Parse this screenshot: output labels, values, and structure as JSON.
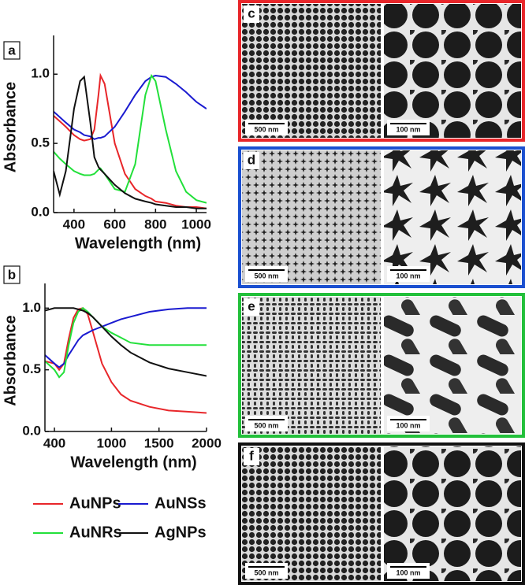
{
  "chart_data": [
    {
      "type": "line",
      "label": "a",
      "x_label": "Wavelength (nm)",
      "y_label": "Absorbance",
      "x": [
        300,
        330,
        360,
        400,
        430,
        450,
        480,
        500,
        520,
        530,
        550,
        600,
        650,
        700,
        750,
        780,
        800,
        850,
        900,
        950,
        1000,
        1050
      ],
      "series": [
        {
          "color": "#e8262a",
          "values": [
            0.7,
            0.66,
            0.62,
            0.56,
            0.53,
            0.52,
            0.53,
            0.6,
            0.85,
            0.99,
            0.93,
            0.5,
            0.28,
            0.17,
            0.12,
            0.1,
            0.08,
            0.07,
            0.05,
            0.04,
            0.04,
            0.03
          ]
        },
        {
          "color": "#1a1ad0",
          "values": [
            0.73,
            0.69,
            0.65,
            0.6,
            0.58,
            0.56,
            0.55,
            0.53,
            0.54,
            0.54,
            0.55,
            0.62,
            0.73,
            0.85,
            0.95,
            0.98,
            0.99,
            0.98,
            0.93,
            0.87,
            0.8,
            0.75
          ]
        },
        {
          "color": "#22e03a",
          "values": [
            0.44,
            0.39,
            0.35,
            0.3,
            0.28,
            0.27,
            0.27,
            0.28,
            0.31,
            0.32,
            0.28,
            0.17,
            0.15,
            0.35,
            0.85,
            0.99,
            0.95,
            0.6,
            0.3,
            0.15,
            0.09,
            0.07
          ]
        },
        {
          "color": "#111111",
          "values": [
            0.3,
            0.13,
            0.3,
            0.75,
            0.95,
            0.98,
            0.65,
            0.4,
            0.33,
            0.31,
            0.28,
            0.2,
            0.14,
            0.1,
            0.08,
            0.07,
            0.06,
            0.05,
            0.04,
            0.04,
            0.03,
            0.03
          ]
        }
      ],
      "xlim": [
        300,
        1050
      ],
      "ylim": [
        0,
        1.28
      ],
      "xticks": [
        400,
        600,
        800,
        1000
      ],
      "yticks": [
        {
          "value": 0,
          "label": "0.0"
        },
        {
          "value": 0.5,
          "label": "0.5"
        },
        {
          "value": 1,
          "label": "1.0"
        }
      ]
    },
    {
      "type": "line",
      "label": "b",
      "x_label": "Wavelength (nm)",
      "y_label": "Absorbance",
      "x": [
        300,
        400,
        450,
        500,
        550,
        600,
        650,
        700,
        750,
        800,
        900,
        1000,
        1100,
        1200,
        1400,
        1600,
        1800,
        2000
      ],
      "series": [
        {
          "name": "AuNPs",
          "color": "#e8262a",
          "values": [
            0.57,
            0.55,
            0.5,
            0.55,
            0.75,
            0.92,
            0.99,
            1.0,
            0.95,
            0.82,
            0.55,
            0.4,
            0.3,
            0.25,
            0.2,
            0.17,
            0.16,
            0.15
          ]
        },
        {
          "name": "AuNSs",
          "color": "#1a1ad0",
          "values": [
            0.62,
            0.55,
            0.52,
            0.55,
            0.62,
            0.68,
            0.74,
            0.78,
            0.8,
            0.82,
            0.85,
            0.88,
            0.91,
            0.93,
            0.97,
            0.99,
            1.0,
            1.0
          ]
        },
        {
          "name": "AuNRs",
          "color": "#22e03a",
          "values": [
            0.57,
            0.5,
            0.44,
            0.48,
            0.7,
            0.88,
            0.97,
            1.0,
            0.97,
            0.93,
            0.85,
            0.8,
            0.76,
            0.72,
            0.7,
            0.7,
            0.7,
            0.7
          ]
        },
        {
          "name": "AgNPs",
          "color": "#111111",
          "values": [
            0.98,
            1.0,
            1.0,
            1.0,
            1.0,
            1.0,
            0.99,
            0.98,
            0.96,
            0.93,
            0.85,
            0.77,
            0.7,
            0.64,
            0.56,
            0.51,
            0.48,
            0.45
          ]
        }
      ],
      "xlim": [
        300,
        2000
      ],
      "ylim": [
        0,
        1.2
      ],
      "xticks": [
        400,
        1000,
        1500,
        2000
      ],
      "yticks": [
        {
          "value": 0,
          "label": "0.0"
        },
        {
          "value": 0.5,
          "label": "0.5"
        },
        {
          "value": 1,
          "label": "1.0"
        }
      ]
    }
  ],
  "images": [
    {
      "label": "c",
      "frame_color": "#e8262a",
      "scale_bars": [
        "500 nm",
        "100 nm"
      ]
    },
    {
      "label": "d",
      "frame_color": "#1a4fd0",
      "scale_bars": [
        "500 nm",
        "100 nm"
      ]
    },
    {
      "label": "e",
      "frame_color": "#22c03a",
      "scale_bars": [
        "500 nm",
        "100 nm"
      ]
    },
    {
      "label": "f",
      "frame_color": "#111111",
      "scale_bars": [
        "500 nm",
        "100 nm"
      ]
    }
  ]
}
